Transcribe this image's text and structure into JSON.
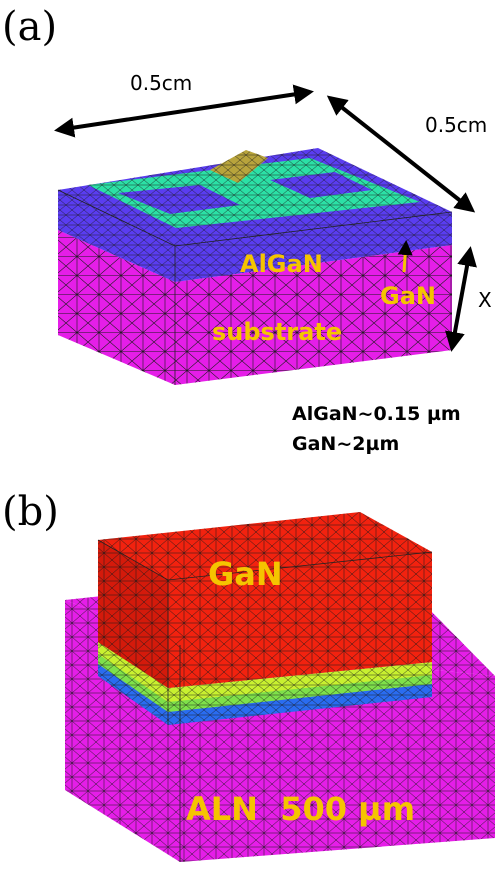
{
  "panel_a": {
    "label": "(a)",
    "dim_top": "0.5cm",
    "dim_right": "0.5cm",
    "dim_height": "X",
    "layer_algan": "AlGaN",
    "layer_gan": "GaN",
    "layer_substrate": "substrate",
    "note_line1": "AlGaN~0.15 µm",
    "note_line2": "GaN~2µm"
  },
  "panel_b": {
    "label": "(b)",
    "layer_gan": "GaN",
    "layer_aln": "ALN  500 µm"
  },
  "colors": {
    "substrate": "#e51ee8",
    "algan_top": "#2ce0a6",
    "gan_frame": "#5a3df0",
    "gan_red": "#f2220f",
    "label_yellow": "#f5c400",
    "mesh": "#1a1a1a"
  }
}
